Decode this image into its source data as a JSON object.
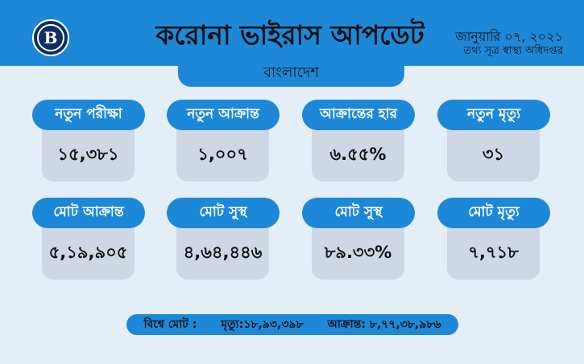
{
  "header": {
    "title": "করোনা ভাইরাস আপডেট",
    "date": "জানুয়ারি ০৭, ২০২১",
    "source": "তথ্য সূত্র স্বাস্থ্য অধিদপ্তর",
    "logo_letter": "B"
  },
  "country": "বাংলাদেশ",
  "stats_row1": [
    {
      "label": "নতুন পরীক্ষা",
      "value": "১৫,৩৮১"
    },
    {
      "label": "নতুন আক্রান্ত",
      "value": "১,০০৭"
    },
    {
      "label": "আক্রান্তের হার",
      "value": "৬.৫৫%"
    },
    {
      "label": "নতুন মৃত্যু",
      "value": "৩১"
    }
  ],
  "stats_row2": [
    {
      "label": "মোট আক্রান্ত",
      "value": "৫,১৯,৯০৫"
    },
    {
      "label": "মোট সুস্থ",
      "value": "৪,৬৪,৪৪৬"
    },
    {
      "label": "মোট সুস্থ",
      "value": "৮৯.৩৩%"
    },
    {
      "label": "মোট মৃত্যু",
      "value": "৭,৭১৮"
    }
  ],
  "footer": {
    "world_label": "বিশ্বে মোট :",
    "deaths": "মৃত্যু:১৮,৯৩,৩৯৮",
    "infected": "আক্রান্ত: ৮,৭৭,৩৮,৯৮৬"
  },
  "colors": {
    "accent": "#1e88d8",
    "background": "#e3eef6",
    "card": "#cfd7e4",
    "logo": "#0f2f63"
  }
}
